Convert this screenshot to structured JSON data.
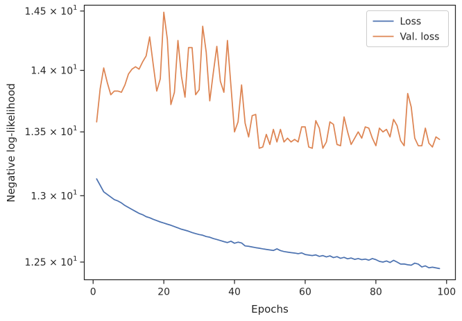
{
  "chart_data": {
    "type": "line",
    "xlabel": "Epochs",
    "ylabel": "Negative log-likelihood",
    "y_scale": "log",
    "xlim": [
      -2.5,
      102.5
    ],
    "ylim": [
      12.37,
      14.55
    ],
    "grid": false,
    "legend_position": "top-right",
    "x_ticks": [
      {
        "value": 0,
        "label": "0"
      },
      {
        "value": 20,
        "label": "20"
      },
      {
        "value": 40,
        "label": "40"
      },
      {
        "value": 60,
        "label": "60"
      },
      {
        "value": 80,
        "label": "80"
      },
      {
        "value": 100,
        "label": "100"
      }
    ],
    "y_ticks": [
      {
        "value": 12.5,
        "mantissa": "1.25",
        "exponent": "1"
      },
      {
        "value": 13.0,
        "mantissa": "1.3",
        "exponent": "1"
      },
      {
        "value": 13.5,
        "mantissa": "1.35",
        "exponent": "1"
      },
      {
        "value": 14.0,
        "mantissa": "1.4",
        "exponent": "1"
      },
      {
        "value": 14.5,
        "mantissa": "1.45",
        "exponent": "1"
      }
    ],
    "series": [
      {
        "name": "Loss",
        "color": "#4c72b0",
        "x": [
          1,
          2,
          3,
          4,
          5,
          6,
          7,
          8,
          9,
          10,
          11,
          12,
          13,
          14,
          15,
          16,
          17,
          18,
          19,
          20,
          21,
          22,
          23,
          24,
          25,
          26,
          27,
          28,
          29,
          30,
          31,
          32,
          33,
          34,
          35,
          36,
          37,
          38,
          39,
          40,
          41,
          42,
          43,
          44,
          45,
          46,
          47,
          48,
          49,
          50,
          51,
          52,
          53,
          54,
          55,
          56,
          57,
          58,
          59,
          60,
          61,
          62,
          63,
          64,
          65,
          66,
          67,
          68,
          69,
          70,
          71,
          72,
          73,
          74,
          75,
          76,
          77,
          78,
          79,
          80,
          81,
          82,
          83,
          84,
          85,
          86,
          87,
          88,
          89,
          90,
          91,
          92,
          93,
          94,
          95,
          96,
          97,
          98
        ],
        "y": [
          13.13,
          13.08,
          13.03,
          13.01,
          12.99,
          12.97,
          12.96,
          12.945,
          12.925,
          12.91,
          12.895,
          12.88,
          12.865,
          12.855,
          12.84,
          12.832,
          12.82,
          12.81,
          12.8,
          12.792,
          12.783,
          12.775,
          12.765,
          12.755,
          12.745,
          12.738,
          12.73,
          12.72,
          12.712,
          12.705,
          12.7,
          12.69,
          12.685,
          12.675,
          12.668,
          12.66,
          12.652,
          12.645,
          12.655,
          12.64,
          12.648,
          12.642,
          12.62,
          12.617,
          12.612,
          12.607,
          12.603,
          12.598,
          12.594,
          12.59,
          12.586,
          12.598,
          12.585,
          12.578,
          12.574,
          12.57,
          12.567,
          12.562,
          12.568,
          12.556,
          12.552,
          12.548,
          12.553,
          12.542,
          12.548,
          12.538,
          12.546,
          12.533,
          12.54,
          12.528,
          12.535,
          12.524,
          12.53,
          12.52,
          12.526,
          12.518,
          12.522,
          12.514,
          12.526,
          12.518,
          12.505,
          12.5,
          12.508,
          12.497,
          12.513,
          12.5,
          12.485,
          12.486,
          12.48,
          12.477,
          12.492,
          12.485,
          12.464,
          12.472,
          12.458,
          12.462,
          12.457,
          12.452
        ]
      },
      {
        "name": "Val. loss",
        "color": "#dd8452",
        "x": [
          1,
          2,
          3,
          4,
          5,
          6,
          7,
          8,
          9,
          10,
          11,
          12,
          13,
          14,
          15,
          16,
          17,
          18,
          19,
          20,
          21,
          22,
          23,
          24,
          25,
          26,
          27,
          28,
          29,
          30,
          31,
          32,
          33,
          34,
          35,
          36,
          37,
          38,
          39,
          40,
          41,
          42,
          43,
          44,
          45,
          46,
          47,
          48,
          49,
          50,
          51,
          52,
          53,
          54,
          55,
          56,
          57,
          58,
          59,
          60,
          61,
          62,
          63,
          64,
          65,
          66,
          67,
          68,
          69,
          70,
          71,
          72,
          73,
          74,
          75,
          76,
          77,
          78,
          79,
          80,
          81,
          82,
          83,
          84,
          85,
          86,
          87,
          88,
          89,
          90,
          91,
          92,
          93,
          94,
          95,
          96,
          97,
          98
        ],
        "y": [
          13.58,
          13.85,
          14.02,
          13.9,
          13.8,
          13.83,
          13.83,
          13.82,
          13.88,
          13.97,
          14.01,
          14.03,
          14.01,
          14.07,
          14.12,
          14.28,
          14.05,
          13.83,
          13.93,
          14.49,
          14.26,
          13.72,
          13.82,
          14.25,
          13.95,
          13.78,
          14.19,
          14.19,
          13.8,
          13.84,
          14.37,
          14.15,
          13.75,
          13.98,
          14.2,
          13.91,
          13.82,
          14.25,
          13.87,
          13.5,
          13.58,
          13.88,
          13.57,
          13.46,
          13.63,
          13.64,
          13.37,
          13.38,
          13.48,
          13.4,
          13.52,
          13.42,
          13.52,
          13.42,
          13.45,
          13.42,
          13.44,
          13.42,
          13.54,
          13.54,
          13.38,
          13.37,
          13.59,
          13.53,
          13.37,
          13.42,
          13.58,
          13.56,
          13.4,
          13.39,
          13.62,
          13.5,
          13.4,
          13.45,
          13.5,
          13.45,
          13.54,
          13.53,
          13.45,
          13.39,
          13.53,
          13.5,
          13.52,
          13.46,
          13.6,
          13.55,
          13.43,
          13.39,
          13.81,
          13.7,
          13.45,
          13.39,
          13.39,
          13.53,
          13.41,
          13.38,
          13.46,
          13.44
        ]
      }
    ]
  }
}
